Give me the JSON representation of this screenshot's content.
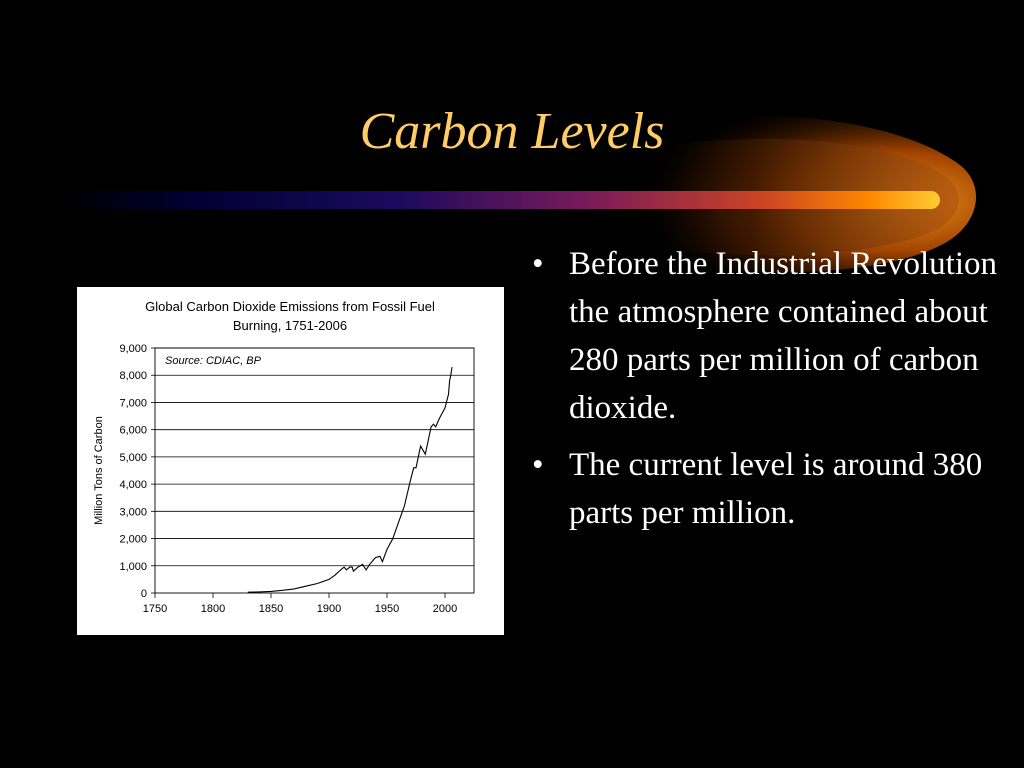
{
  "slide": {
    "title": "Carbon Levels",
    "bullets": [
      {
        "marker": "•",
        "text": "Before the Industrial Revolution the atmosphere contained about 280 parts per million of carbon dioxide."
      },
      {
        "marker": "•",
        "text": "The current level is around 380 parts per million."
      }
    ]
  },
  "colors": {
    "background": "#000000",
    "title": "#ffcc66",
    "text": "#ffffff",
    "accent_orange": "#ff9900",
    "accent_navy": "#000066"
  },
  "chart_data": {
    "type": "line",
    "title": "Global Carbon Dioxide Emissions from Fossil Fuel Burning, 1751-2006",
    "title_lines": [
      "Global Carbon Dioxide Emissions from Fossil Fuel",
      "Burning, 1751-2006"
    ],
    "source_note": "Source: CDIAC, BP",
    "xlabel": "",
    "ylabel": "Million Tons of Carbon",
    "xlim": [
      1750,
      2025
    ],
    "ylim": [
      0,
      9000
    ],
    "xticks": [
      "1750",
      "1800",
      "1850",
      "1900",
      "1950",
      "2000"
    ],
    "yticks": [
      "0",
      "1,000",
      "2,000",
      "3,000",
      "4,000",
      "5,000",
      "6,000",
      "7,000",
      "8,000",
      "9,000"
    ],
    "grid": true,
    "legend": "none",
    "series": [
      {
        "x": [
          1830,
          1840,
          1850,
          1860,
          1870,
          1880,
          1890,
          1900,
          1905,
          1910,
          1913,
          1915,
          1918,
          1920,
          1921,
          1925,
          1929,
          1932,
          1935,
          1940,
          1944,
          1946,
          1950,
          1955,
          1960,
          1965,
          1970,
          1973,
          1975,
          1979,
          1983,
          1988,
          1990,
          1992,
          1995,
          2000,
          2003,
          2004,
          2005,
          2006
        ],
        "y": [
          30,
          40,
          60,
          100,
          150,
          250,
          350,
          500,
          650,
          850,
          950,
          850,
          950,
          950,
          800,
          950,
          1050,
          850,
          1050,
          1300,
          1350,
          1150,
          1600,
          2000,
          2600,
          3200,
          4100,
          4600,
          4600,
          5400,
          5100,
          6100,
          6200,
          6100,
          6400,
          6800,
          7300,
          7800,
          8000,
          8300
        ]
      }
    ]
  }
}
